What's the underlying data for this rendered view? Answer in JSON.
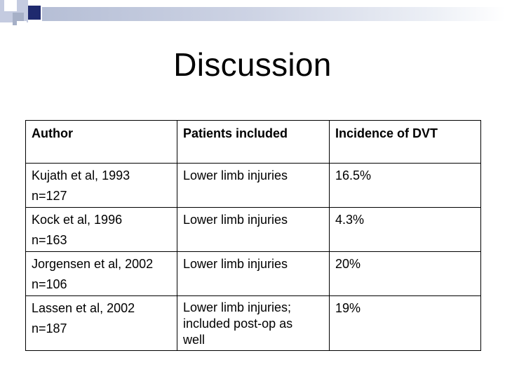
{
  "slide": {
    "title": "Discussion"
  },
  "table": {
    "headers": [
      "Author",
      "Patients included",
      "Incidence of DVT"
    ],
    "rows": [
      {
        "author": "Kujath et al, 1993",
        "n": "n=127",
        "patients": "Lower limb injuries",
        "incidence": "16.5%"
      },
      {
        "author": "Kock et al, 1996",
        "n": "n=163",
        "patients": "Lower limb injuries",
        "incidence": "4.3%"
      },
      {
        "author": "Jorgensen et al, 2002",
        "n": "n=106",
        "patients": "Lower limb injuries",
        "incidence": "20%"
      },
      {
        "author": "Lassen et al, 2002",
        "n": "n=187",
        "patients_lines": [
          "Lower limb injuries;",
          "included post-op as",
          "well"
        ],
        "incidence": "19%"
      }
    ]
  },
  "colors": {
    "accent_navy": "#1f2a6e",
    "bar_start": "#b6bfd6",
    "bar_end": "#ffffff"
  }
}
